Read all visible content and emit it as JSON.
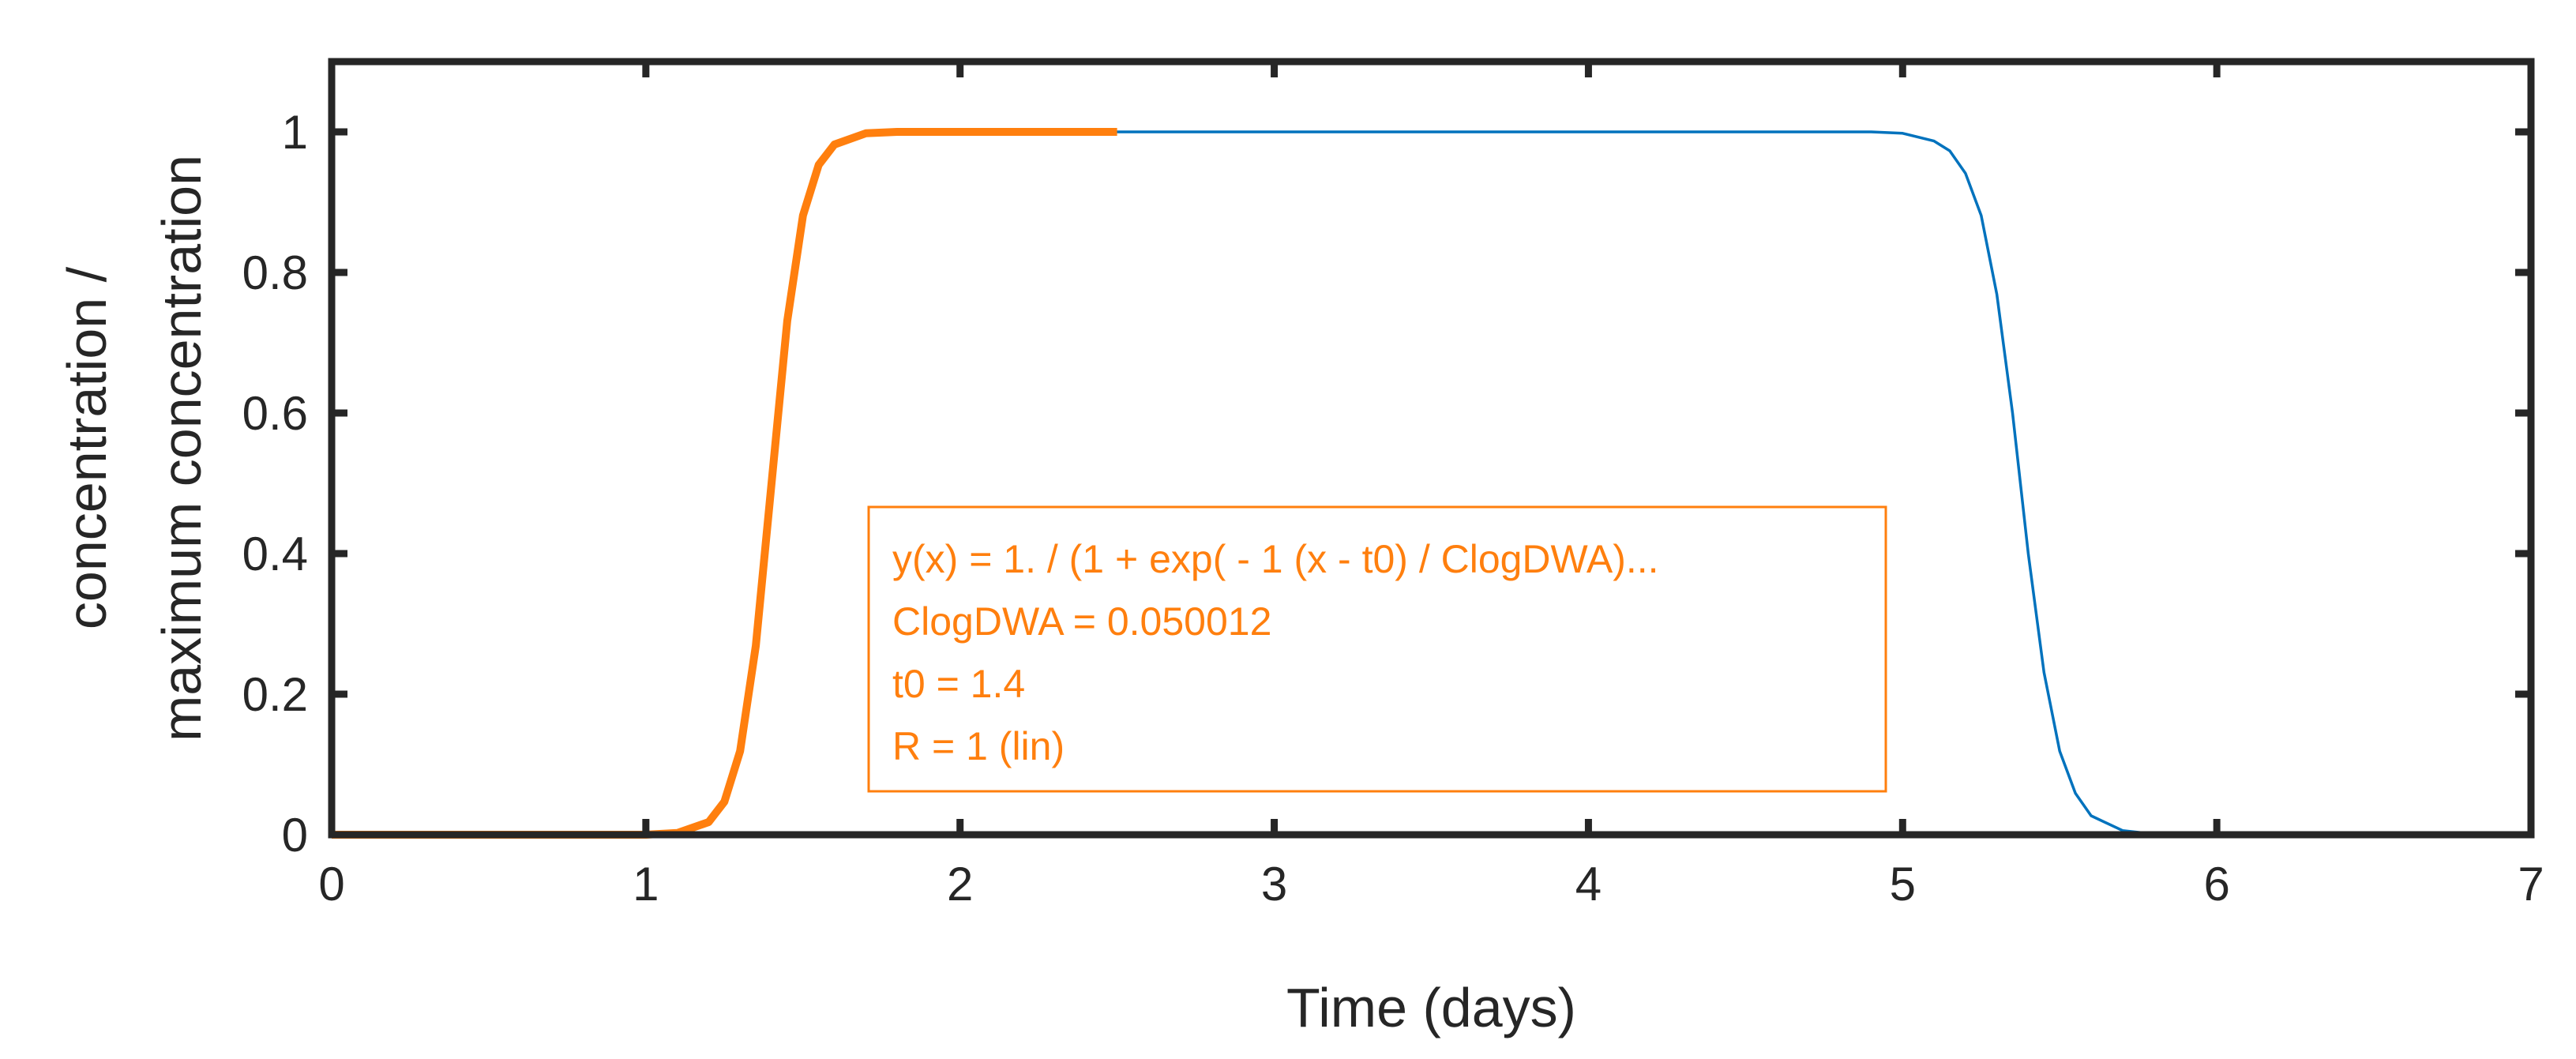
{
  "chart_data": {
    "type": "line",
    "title": "",
    "xlabel": "Time (days)",
    "ylabel_lines": [
      "concentration /",
      "maximum concentration"
    ],
    "xlim": [
      0,
      7
    ],
    "ylim": [
      0,
      1.1
    ],
    "x_ticks": [
      0,
      1,
      2,
      3,
      4,
      5,
      6,
      7
    ],
    "x_tick_labels": [
      "0",
      "1",
      "2",
      "3",
      "4",
      "5",
      "6",
      "7"
    ],
    "y_ticks": [
      0,
      0.2,
      0.4,
      0.6,
      0.8,
      1
    ],
    "y_tick_labels": [
      "0",
      "0.2",
      "0.4",
      "0.6",
      "0.8",
      "1"
    ],
    "grid": false,
    "series": [
      {
        "color": "#0072bd",
        "style": "thin",
        "x": [
          0,
          1.0,
          1.1,
          1.2,
          1.25,
          1.3,
          1.35,
          1.4,
          1.45,
          1.5,
          1.55,
          1.6,
          1.7,
          1.8,
          2.0,
          3.0,
          4.0,
          4.9,
          5.0,
          5.1,
          5.15,
          5.2,
          5.25,
          5.3,
          5.35,
          5.4,
          5.45,
          5.5,
          5.55,
          5.6,
          5.7,
          5.8,
          6.0,
          7.0
        ],
        "y": [
          0,
          0.0,
          0.0025,
          0.018,
          0.047,
          0.119,
          0.269,
          0.5,
          0.731,
          0.881,
          0.953,
          0.982,
          0.998,
          1.0,
          1.0,
          1.0,
          1.0,
          1.0,
          0.998,
          0.987,
          0.973,
          0.941,
          0.881,
          0.769,
          0.6,
          0.4,
          0.231,
          0.119,
          0.059,
          0.027,
          0.006,
          0.001,
          0,
          0
        ]
      },
      {
        "color": "#ff7f0e",
        "style": "thick",
        "x": [
          0,
          1.0,
          1.1,
          1.2,
          1.25,
          1.3,
          1.35,
          1.4,
          1.45,
          1.5,
          1.55,
          1.6,
          1.7,
          1.8,
          2.0,
          2.5
        ],
        "y": [
          0,
          0.0,
          0.0025,
          0.018,
          0.047,
          0.119,
          0.269,
          0.5,
          0.731,
          0.881,
          0.953,
          0.982,
          0.998,
          1.0,
          1.0,
          1.0
        ]
      }
    ],
    "annotation": {
      "lines": [
        "y(x) = 1. / (1 + exp( - 1 (x - t0) / ClogDWA)...",
        "ClogDWA = 0.050012",
        "t0 = 1.4",
        "R = 1  (lin)"
      ],
      "color": "#ff7f0e"
    },
    "colors": {
      "axis": "#262626",
      "blue": "#0072bd",
      "orange": "#ff7f0e"
    }
  }
}
